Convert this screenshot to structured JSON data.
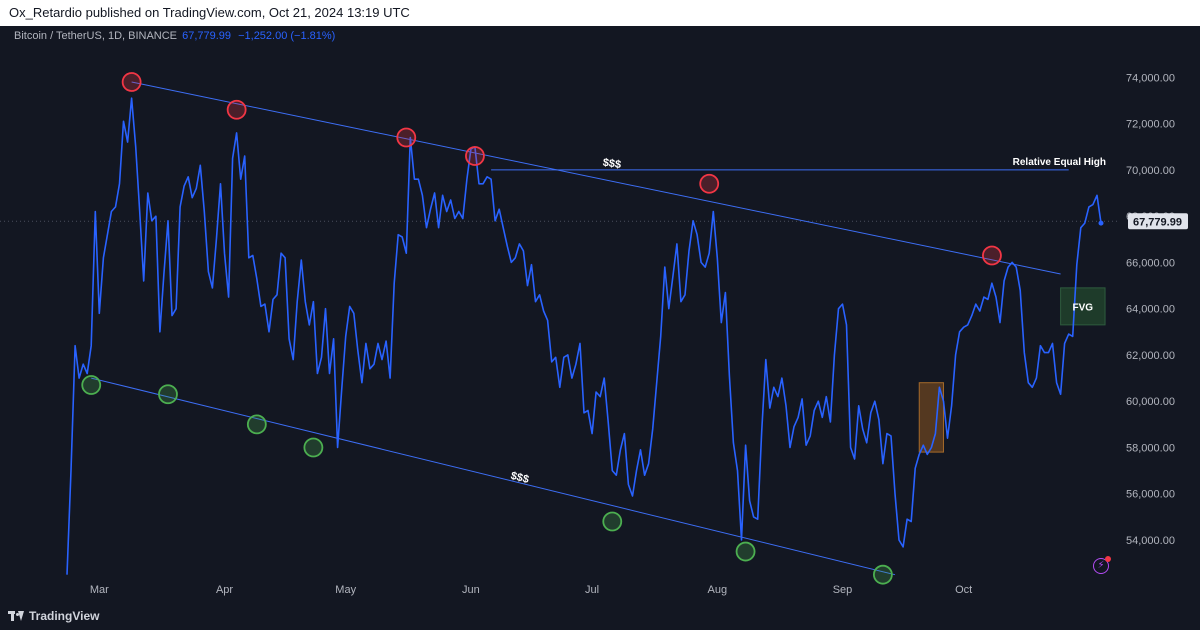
{
  "header": {
    "published_text": "Ox_Retardio published on TradingView.com, Oct 21, 2024 13:19 UTC"
  },
  "legend": {
    "symbol": "Bitcoin / TetherUS, 1D, BINANCE",
    "last_price": "67,779.99",
    "change": "−1,252.00 (−1.81%)"
  },
  "brand": {
    "name": "TradingView"
  },
  "colors": {
    "background": "#131722",
    "line": "#2962ff",
    "trendline": "#3d6ef5",
    "resistance_marker": "#f23645",
    "support_marker": "#4caf50",
    "fvg_box": "#1e3b2a",
    "orange_box": "#6b4420"
  },
  "chart_data": {
    "type": "line",
    "series": [
      {
        "values": [
          52500,
          57000,
          62400,
          61000,
          61600,
          61200,
          62400,
          68200,
          63800,
          66200,
          67200,
          68200,
          68400,
          69400,
          72100,
          71200,
          73100,
          71000,
          68200,
          65200,
          69000,
          67800,
          68000,
          63000,
          65500,
          67800,
          63700,
          64000,
          68400,
          69300,
          69700,
          68800,
          69200,
          70200,
          68200,
          65600,
          64900,
          67000,
          69400,
          66400,
          64500,
          70500,
          71600,
          69600,
          70600,
          66200,
          66300,
          65300,
          64100,
          64200,
          63000,
          64400,
          64600,
          66400,
          66200,
          62700,
          61800,
          64300,
          66100,
          64300,
          63300,
          64300,
          61200,
          61900,
          64000,
          61200,
          62700,
          58000,
          60500,
          62800,
          64100,
          63800,
          62200,
          60800,
          62500,
          61400,
          61600,
          62500,
          61800,
          62600,
          61000,
          65100,
          67200,
          67100,
          66400,
          71400,
          69600,
          69600,
          68900,
          67500,
          68300,
          69000,
          67500,
          68900,
          68200,
          68700,
          67900,
          68200,
          67900,
          69600,
          70900,
          71000,
          69400,
          69400,
          69700,
          69600,
          67800,
          68300,
          67500,
          66700,
          66000,
          66200,
          66800,
          66500,
          65000,
          65900,
          64300,
          64600,
          63900,
          63500,
          61700,
          61900,
          60600,
          61900,
          62000,
          61000,
          61600,
          62500,
          59500,
          59600,
          58600,
          60400,
          60200,
          61000,
          59100,
          57000,
          56800,
          57900,
          58600,
          56400,
          55900,
          57000,
          57900,
          56800,
          57300,
          58800,
          60800,
          62800,
          65800,
          64000,
          65400,
          66800,
          64300,
          64600,
          66500,
          67800,
          67200,
          66000,
          65800,
          66400,
          68200,
          66200,
          63400,
          64700,
          61100,
          58200,
          57000,
          54000,
          58100,
          55700,
          55000,
          54900,
          58700,
          61800,
          59700,
          60600,
          60200,
          61000,
          59800,
          58000,
          58900,
          59300,
          60100,
          58100,
          58500,
          59600,
          60000,
          59300,
          60200,
          59100,
          62000,
          64000,
          64200,
          63300,
          58000,
          57500,
          59800,
          58800,
          58200,
          59500,
          60000,
          59200,
          57300,
          58600,
          58500,
          56000,
          54000,
          53700,
          54900,
          54800,
          57100,
          57700,
          58100,
          57700,
          58000,
          58600,
          60600,
          60000,
          58400,
          59800,
          62000,
          63000,
          63200,
          63300,
          63700,
          64200,
          63900,
          64500,
          64400,
          65100,
          64500,
          63400,
          65200,
          65800,
          66000,
          65800,
          64800,
          62100,
          60800,
          60600,
          61000,
          62400,
          62100,
          62100,
          62500,
          60800,
          60300,
          62500,
          62900,
          62800,
          65900,
          67500,
          67700,
          68400,
          68500,
          68900,
          67700
        ]
      }
    ],
    "x_tick_labels": [
      "Mar",
      "Apr",
      "May",
      "Jun",
      "Jul",
      "Aug",
      "Sep",
      "Oct"
    ],
    "y_tick_labels": [
      "54,000.00",
      "56,000.00",
      "58,000.00",
      "60,000.00",
      "62,000.00",
      "64,000.00",
      "66,000.00",
      "68,000.00",
      "70,000.00",
      "72,000.00",
      "74,000.00"
    ],
    "ylim": [
      52400,
      75400
    ],
    "last_price_label": "67,779.99",
    "annotations": {
      "relative_equal_high": "Relative Equal High",
      "fvg": "FVG",
      "liquidity_top": "$$$",
      "liquidity_bottom": "$$$"
    },
    "resistance_points": [
      {
        "i": 16,
        "v": 73800
      },
      {
        "i": 42,
        "v": 72600
      },
      {
        "i": 84,
        "v": 71400
      },
      {
        "i": 101,
        "v": 70600
      },
      {
        "i": 159,
        "v": 69400
      },
      {
        "i": 229,
        "v": 66300
      }
    ],
    "support_points": [
      {
        "i": 6,
        "v": 60700
      },
      {
        "i": 25,
        "v": 60300
      },
      {
        "i": 47,
        "v": 59000
      },
      {
        "i": 61,
        "v": 58000
      },
      {
        "i": 135,
        "v": 54800
      },
      {
        "i": 168,
        "v": 53500
      },
      {
        "i": 202,
        "v": 52500
      }
    ],
    "trendlines": [
      {
        "i1": 16,
        "v1": 73800,
        "i2": 246,
        "v2": 65500
      },
      {
        "i1": 6,
        "v1": 61000,
        "i2": 205,
        "v2": 52500
      },
      {
        "i1": 105,
        "v1": 70000,
        "i2": 248,
        "v2": 70000
      }
    ],
    "boxes": [
      {
        "type": "fvg",
        "i1": 246,
        "i2": 257,
        "v1": 63300,
        "v2": 64900
      },
      {
        "type": "orange",
        "i1": 211,
        "i2": 217,
        "v1": 57800,
        "v2": 60800
      }
    ]
  }
}
